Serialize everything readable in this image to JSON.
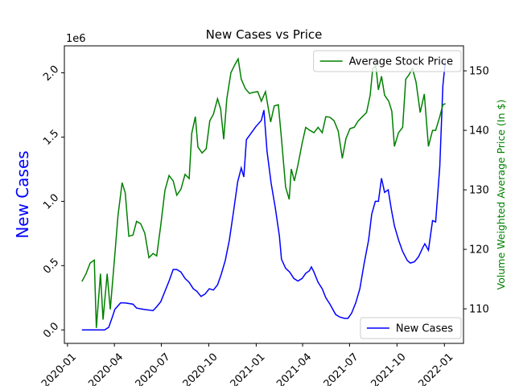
{
  "chart_data": {
    "type": "line",
    "title": "New Cases vs Price",
    "ylabel": "New Cases",
    "y2label": "Volume Weighted Average Price (In $)",
    "y_offset_label": "1e6",
    "ylabel_color": "blue",
    "y2label_color": "green",
    "xlim": [
      18256,
      19030
    ],
    "xticks": [
      {
        "value": 18262,
        "label": "2020-01"
      },
      {
        "value": 18353,
        "label": "2020-04"
      },
      {
        "value": 18444,
        "label": "2020-07"
      },
      {
        "value": 18536,
        "label": "2020-10"
      },
      {
        "value": 18628,
        "label": "2021-01"
      },
      {
        "value": 18718,
        "label": "2021-04"
      },
      {
        "value": 18809,
        "label": "2021-07"
      },
      {
        "value": 18901,
        "label": "2021-10"
      },
      {
        "value": 18993,
        "label": "2022-01"
      }
    ],
    "ylim": [
      -0.105,
      2.21
    ],
    "yticks": [
      {
        "value": 0,
        "label": "0.0"
      },
      {
        "value": 0.5,
        "label": "0.5"
      },
      {
        "value": 1,
        "label": "1.0"
      },
      {
        "value": 1.5,
        "label": "1.5"
      },
      {
        "value": 2,
        "label": "2.0"
      }
    ],
    "y2lim": [
      104.2,
      154.2
    ],
    "y2ticks": [
      110,
      120,
      130,
      140,
      150
    ],
    "series": [
      {
        "name": "New Cases",
        "color": "blue",
        "legend": "lower right",
        "x": [
          18290,
          18334,
          18342,
          18349,
          18354,
          18365,
          18373,
          18389,
          18396,
          18409,
          18428,
          18435,
          18443,
          18451,
          18459,
          18467,
          18474,
          18482,
          18490,
          18498,
          18506,
          18513,
          18521,
          18529,
          18537,
          18545,
          18553,
          18560,
          18568,
          18576,
          18584,
          18592,
          18599,
          18604,
          18609,
          18618,
          18627,
          18638,
          18643,
          18649,
          18657,
          18665,
          18673,
          18677,
          18685,
          18693,
          18701,
          18709,
          18717,
          18724,
          18731,
          18735,
          18740,
          18748,
          18756,
          18763,
          18771,
          18782,
          18790,
          18799,
          18806,
          18813,
          18821,
          18829,
          18837,
          18846,
          18852,
          18859,
          18865,
          18871,
          18877,
          18884,
          18890,
          18896,
          18904,
          18912,
          18921,
          18927,
          18935,
          18943,
          18951,
          18955,
          18962,
          18970,
          18976,
          18984,
          18990,
          18995
        ],
        "values": [
          0.0,
          0.0,
          0.02,
          0.1,
          0.16,
          0.21,
          0.21,
          0.2,
          0.17,
          0.16,
          0.15,
          0.18,
          0.22,
          0.3,
          0.38,
          0.47,
          0.47,
          0.45,
          0.4,
          0.37,
          0.32,
          0.3,
          0.26,
          0.28,
          0.32,
          0.31,
          0.35,
          0.43,
          0.54,
          0.7,
          0.92,
          1.15,
          1.26,
          1.19,
          1.48,
          1.53,
          1.58,
          1.63,
          1.71,
          1.39,
          1.14,
          0.95,
          0.73,
          0.55,
          0.48,
          0.45,
          0.4,
          0.38,
          0.4,
          0.44,
          0.46,
          0.49,
          0.45,
          0.37,
          0.32,
          0.25,
          0.2,
          0.12,
          0.1,
          0.09,
          0.09,
          0.13,
          0.21,
          0.32,
          0.51,
          0.7,
          0.9,
          1.0,
          1.0,
          1.18,
          1.07,
          1.09,
          0.94,
          0.81,
          0.7,
          0.61,
          0.54,
          0.52,
          0.53,
          0.57,
          0.64,
          0.67,
          0.62,
          0.85,
          0.84,
          1.27,
          1.9,
          2.1
        ]
      },
      {
        "name": "Average Stock Price",
        "color": "green",
        "axis": "y2",
        "legend": "upper right",
        "x": [
          18290,
          18298,
          18306,
          18314,
          18318,
          18326,
          18331,
          18339,
          18345,
          18353,
          18360,
          18368,
          18374,
          18381,
          18389,
          18396,
          18404,
          18412,
          18420,
          18428,
          18435,
          18443,
          18451,
          18459,
          18467,
          18474,
          18482,
          18490,
          18498,
          18503,
          18510,
          18515,
          18523,
          18531,
          18538,
          18545,
          18553,
          18559,
          18565,
          18571,
          18579,
          18587,
          18593,
          18599,
          18607,
          18615,
          18623,
          18631,
          18638,
          18646,
          18656,
          18663,
          18671,
          18677,
          18685,
          18692,
          18696,
          18702,
          18709,
          18717,
          18724,
          18732,
          18740,
          18748,
          18756,
          18763,
          18771,
          18779,
          18787,
          18795,
          18802,
          18810,
          18818,
          18826,
          18834,
          18842,
          18849,
          18854,
          18860,
          18865,
          18871,
          18877,
          18885,
          18891,
          18896,
          18904,
          18912,
          18918,
          18924,
          18931,
          18938,
          18946,
          18954,
          18962,
          18970,
          18976,
          18984,
          18990,
          18995
        ],
        "values": [
          114.6,
          115.9,
          117.7,
          118.2,
          106.8,
          115.9,
          108.2,
          115.9,
          109.9,
          118.2,
          125.7,
          131.2,
          129.5,
          122.2,
          122.4,
          124.7,
          124.3,
          122.7,
          118.6,
          119.3,
          118.9,
          124.1,
          129.9,
          132.4,
          131.5,
          129.1,
          130.1,
          132.6,
          131.9,
          139.5,
          142.3,
          137.2,
          136.2,
          136.9,
          141.6,
          142.7,
          145.3,
          143.6,
          138.5,
          145.3,
          149.7,
          151.1,
          152.0,
          148.6,
          147.0,
          146.2,
          146.4,
          146.5,
          144.9,
          146.5,
          141.4,
          144.1,
          144.3,
          138.6,
          130.5,
          128.4,
          133.5,
          131.5,
          134.2,
          137.8,
          140.5,
          140.0,
          139.6,
          140.5,
          139.6,
          142.3,
          142.2,
          141.6,
          139.9,
          135.3,
          138.6,
          140.3,
          140.5,
          141.6,
          142.3,
          143.0,
          145.9,
          150.4,
          150.8,
          146.8,
          149.1,
          145.9,
          144.9,
          143.2,
          137.3,
          139.6,
          140.5,
          148.6,
          149.3,
          150.4,
          148.1,
          143.0,
          146.1,
          137.3,
          140.0,
          140.0,
          142.3,
          144.3,
          144.5
        ]
      }
    ]
  }
}
